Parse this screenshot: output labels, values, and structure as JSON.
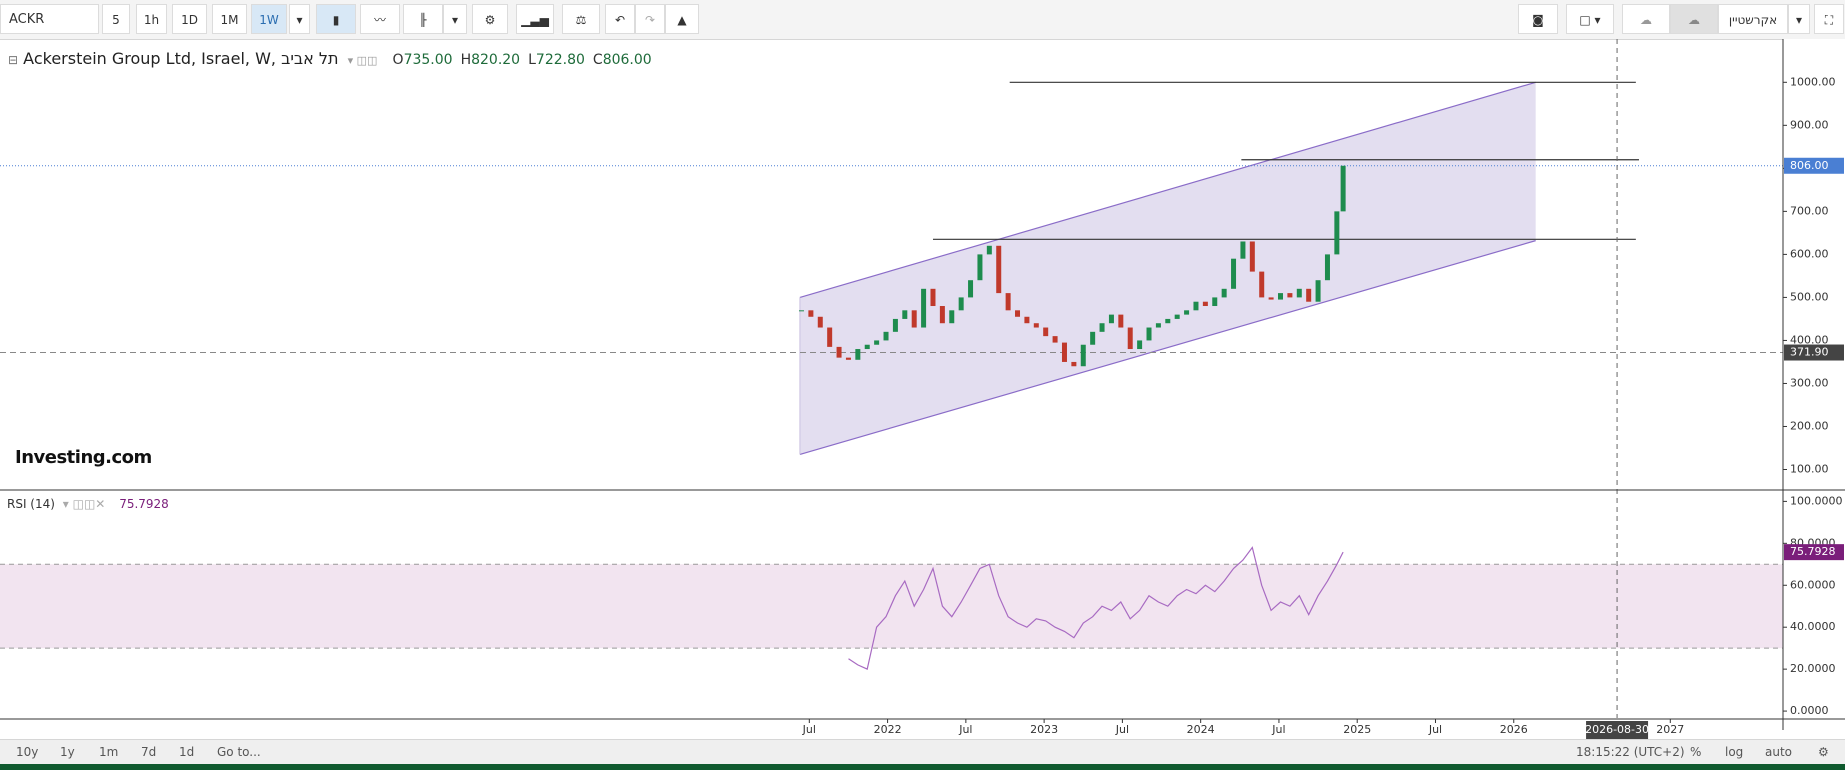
{
  "toolbar": {
    "symbol": "ACKR",
    "intervals": [
      "5",
      "1h",
      "1D",
      "1M",
      "1W"
    ],
    "watchlist": "אקרשטיין"
  },
  "logo": "Investing.com",
  "chart_data": [
    {
      "type": "candle",
      "title": "Ackerstein Group Ltd, Israel, W, תל אביב",
      "ohlc": [
        {
          "key": "O",
          "value": "735.00"
        },
        {
          "key": "H",
          "value": "820.20"
        },
        {
          "key": "L",
          "value": "722.80"
        },
        {
          "key": "C",
          "value": "806.00"
        }
      ],
      "x": [
        2021.45,
        2021.51,
        2021.57,
        2021.63,
        2021.69,
        2021.75,
        2021.81,
        2021.87,
        2021.93,
        2021.99,
        2022.05,
        2022.11,
        2022.17,
        2022.23,
        2022.29,
        2022.35,
        2022.41,
        2022.47,
        2022.53,
        2022.59,
        2022.65,
        2022.71,
        2022.77,
        2022.83,
        2022.89,
        2022.95,
        2023.01,
        2023.07,
        2023.13,
        2023.19,
        2023.25,
        2023.31,
        2023.37,
        2023.43,
        2023.49,
        2023.55,
        2023.61,
        2023.67,
        2023.73,
        2023.79,
        2023.85,
        2023.91,
        2023.97,
        2024.03,
        2024.09,
        2024.15,
        2024.21,
        2024.27,
        2024.33,
        2024.39,
        2024.45,
        2024.51,
        2024.57,
        2024.63,
        2024.69,
        2024.75,
        2024.81,
        2024.87,
        2024.91
      ],
      "values": [
        470,
        455,
        430,
        385,
        360,
        355,
        380,
        390,
        400,
        420,
        450,
        470,
        430,
        520,
        480,
        440,
        470,
        500,
        540,
        600,
        620,
        510,
        470,
        455,
        440,
        430,
        410,
        395,
        350,
        340,
        390,
        420,
        440,
        460,
        430,
        380,
        400,
        430,
        440,
        450,
        460,
        470,
        490,
        480,
        500,
        520,
        590,
        630,
        560,
        500,
        495,
        510,
        500,
        520,
        490,
        540,
        600,
        700,
        806
      ],
      "up_color": "#1e8c4e",
      "down_color": "#c0392b",
      "xlim": [
        2016.33,
        2027.72
      ],
      "xticks": [
        {
          "value": 2021.5,
          "label": "Jul"
        },
        2022,
        {
          "value": 2022.5,
          "label": "Jul"
        },
        2023,
        {
          "value": 2023.5,
          "label": "Jul"
        },
        2024,
        {
          "value": 2024.5,
          "label": "Jul"
        },
        2025,
        {
          "value": 2025.5,
          "label": "Jul"
        },
        2026,
        2027
      ],
      "ylim": [
        57,
        1096
      ],
      "yticks": [
        {
          "value": 100,
          "label": "100.00"
        },
        {
          "value": 200,
          "label": "200.00"
        },
        {
          "value": 300,
          "label": "300.00"
        },
        {
          "value": 400,
          "label": "400.00"
        },
        {
          "value": 500,
          "label": "500.00"
        },
        {
          "value": 600,
          "label": "600.00"
        },
        {
          "value": 700,
          "label": "700.00"
        },
        {
          "value": 800,
          "label": "800.00"
        },
        {
          "value": 900,
          "label": "900.00"
        },
        {
          "value": 1000,
          "label": "1000.00"
        }
      ],
      "last_price": {
        "value": 806,
        "label": "806.00",
        "color": "#4a7fd3"
      },
      "marker_line": {
        "value": 371.9,
        "label": "371.90"
      },
      "crosshair": {
        "value": 2026.66,
        "label": "2026-08-30"
      },
      "channel": {
        "upper": [
          [
            2021.44,
            500
          ],
          [
            2026.14,
            1000
          ]
        ],
        "lower": [
          [
            2021.44,
            135
          ],
          [
            2026.14,
            632
          ]
        ],
        "color": "#8a6cc8",
        "fill": "#dcd6ec"
      },
      "hlines": [
        {
          "y": 1000,
          "x": [
            2022.78,
            2026.78
          ]
        },
        {
          "y": 820,
          "x": [
            2024.26,
            2026.8
          ]
        },
        {
          "y": 635,
          "x": [
            2022.29,
            2026.78
          ]
        }
      ]
    },
    {
      "type": "line",
      "title": "RSI (14)",
      "values": [
        null,
        null,
        null,
        null,
        null,
        25,
        22,
        20,
        40,
        45,
        55,
        62,
        50,
        58,
        68,
        50,
        45,
        52,
        60,
        68,
        70,
        55,
        45,
        42,
        40,
        44,
        43,
        40,
        38,
        35,
        42,
        45,
        50,
        48,
        52,
        44,
        48,
        55,
        52,
        50,
        55,
        58,
        56,
        60,
        57,
        62,
        68,
        72,
        78,
        60,
        48,
        52,
        50,
        55,
        46,
        55,
        62,
        70,
        75.7928
      ],
      "color": "#a86bc2",
      "band": {
        "lower": 30,
        "upper": 70,
        "fill": "#f2e4f0"
      },
      "last_value": {
        "value": 75.7928,
        "label": "75.7928"
      },
      "ylim": [
        -3.3,
        104
      ],
      "yticks": [
        {
          "value": 0,
          "label": "0.0000"
        },
        {
          "value": 20,
          "label": "20.0000"
        },
        {
          "value": 40,
          "label": "40.0000"
        },
        {
          "value": 60,
          "label": "60.0000"
        },
        {
          "value": 80,
          "label": "80.0000"
        },
        {
          "value": 100,
          "label": "100.0000"
        }
      ]
    }
  ],
  "footer": {
    "ranges": [
      "10y",
      "1y",
      "1m",
      "7d",
      "1d"
    ],
    "goto": "Go to...",
    "clock": "18:15:22 (UTC+2)",
    "options": [
      "%",
      "log",
      "auto"
    ]
  }
}
